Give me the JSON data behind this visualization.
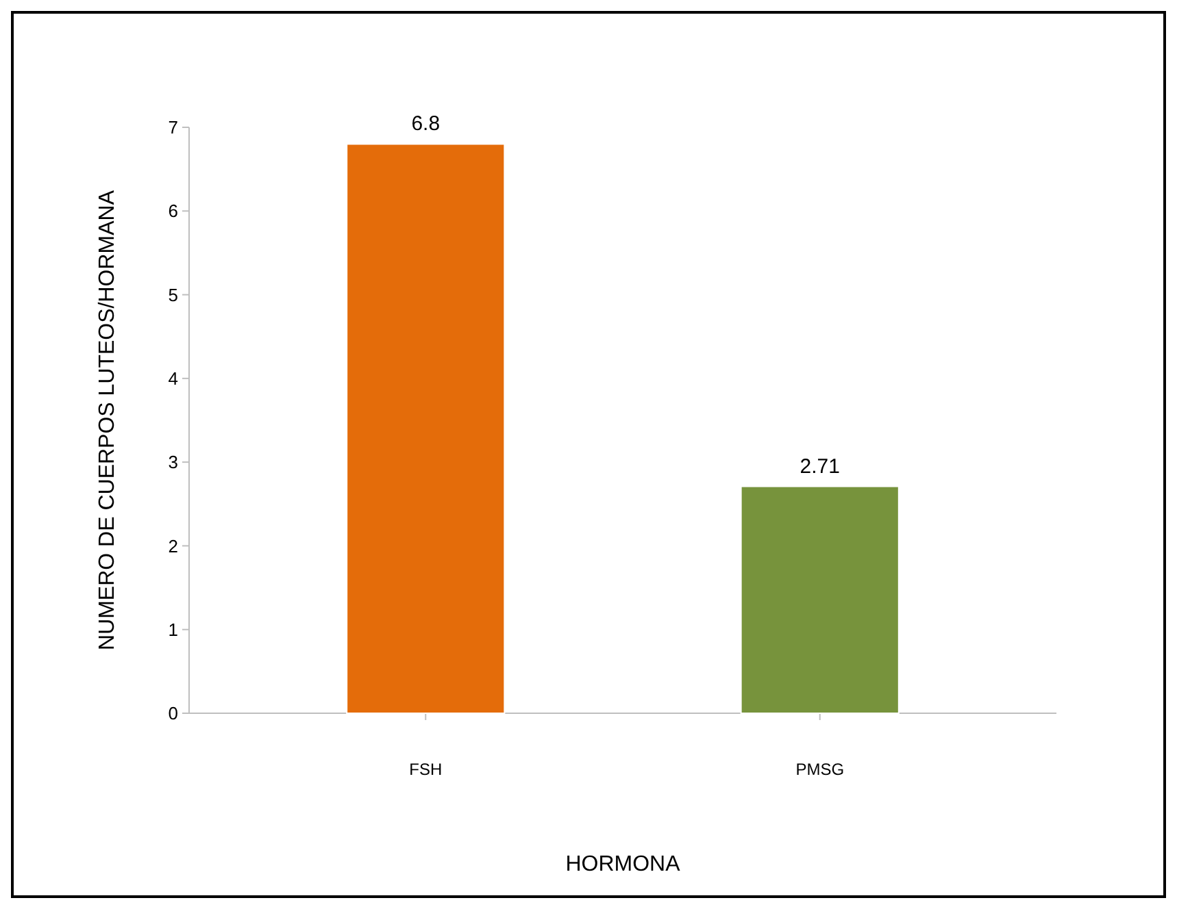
{
  "chart_data": {
    "type": "bar",
    "xlabel": "HORMONA",
    "ylabel": "NUMERO DE CUERPOS LUTEOS/HORMANA",
    "categories": [
      "FSH",
      "PMSG"
    ],
    "values": [
      6.8,
      2.71
    ],
    "colors": [
      "#e46c0a",
      "#77933c"
    ],
    "ylim": [
      0,
      7
    ],
    "yticks": [
      0,
      1,
      2,
      3,
      4,
      5,
      6,
      7
    ],
    "data_labels": true
  }
}
